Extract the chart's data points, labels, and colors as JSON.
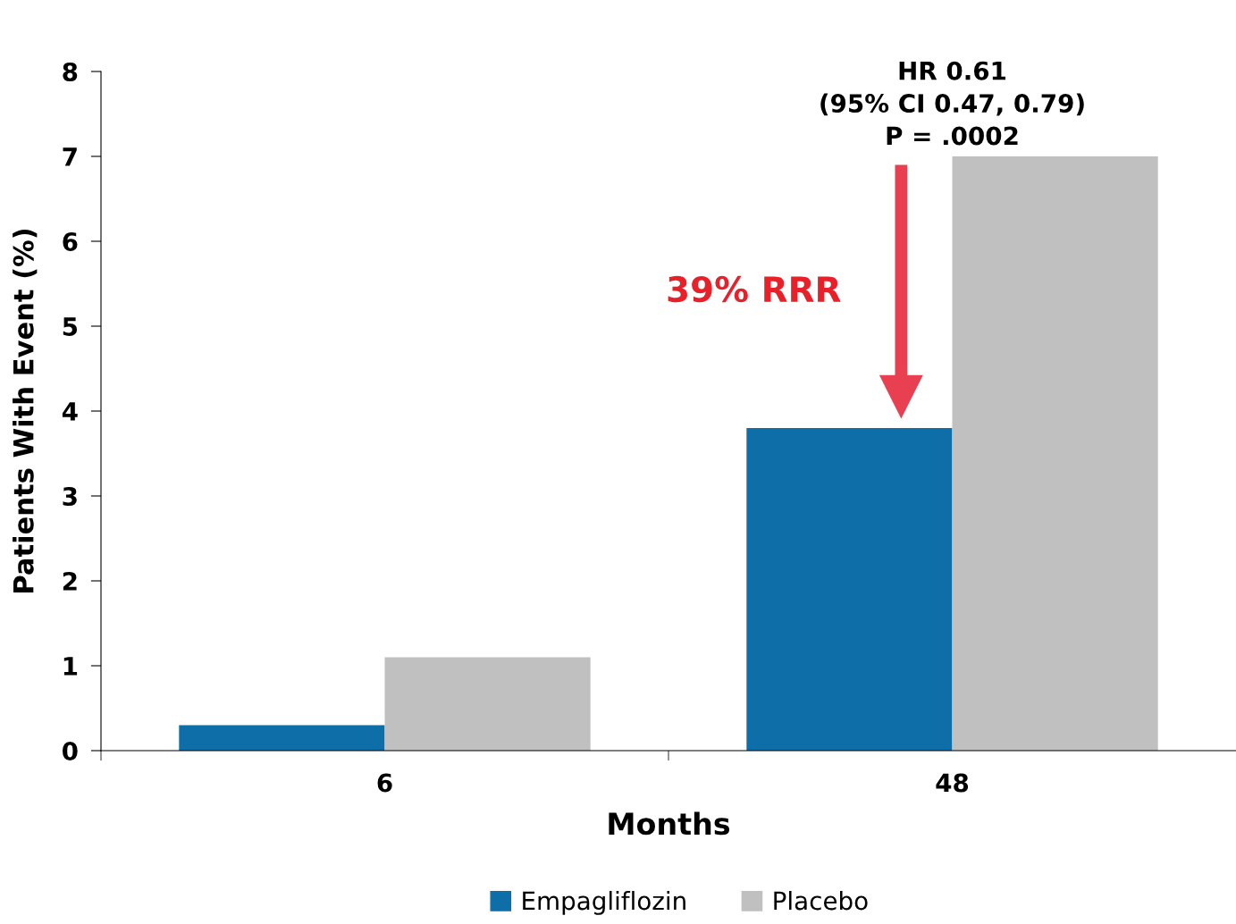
{
  "chart_data": {
    "type": "bar",
    "xlabel": "Months",
    "ylabel": "Patients With Event (%)",
    "categories": [
      "6",
      "48"
    ],
    "series": [
      {
        "name": "Empagliflozin",
        "color": "#0e6fa8",
        "values": [
          0.3,
          3.8
        ]
      },
      {
        "name": "Placebo",
        "color": "#c0c0c0",
        "values": [
          1.1,
          7.0
        ]
      }
    ],
    "ylim": [
      0,
      8
    ],
    "yticks": [
      0,
      1,
      2,
      3,
      4,
      5,
      6,
      7,
      8
    ],
    "grid": false,
    "legend": "bottom",
    "annotations": [
      "HR 0.61\n(95% CI 0.47, 0.79)\nP = .0002",
      "39% RRR"
    ]
  }
}
